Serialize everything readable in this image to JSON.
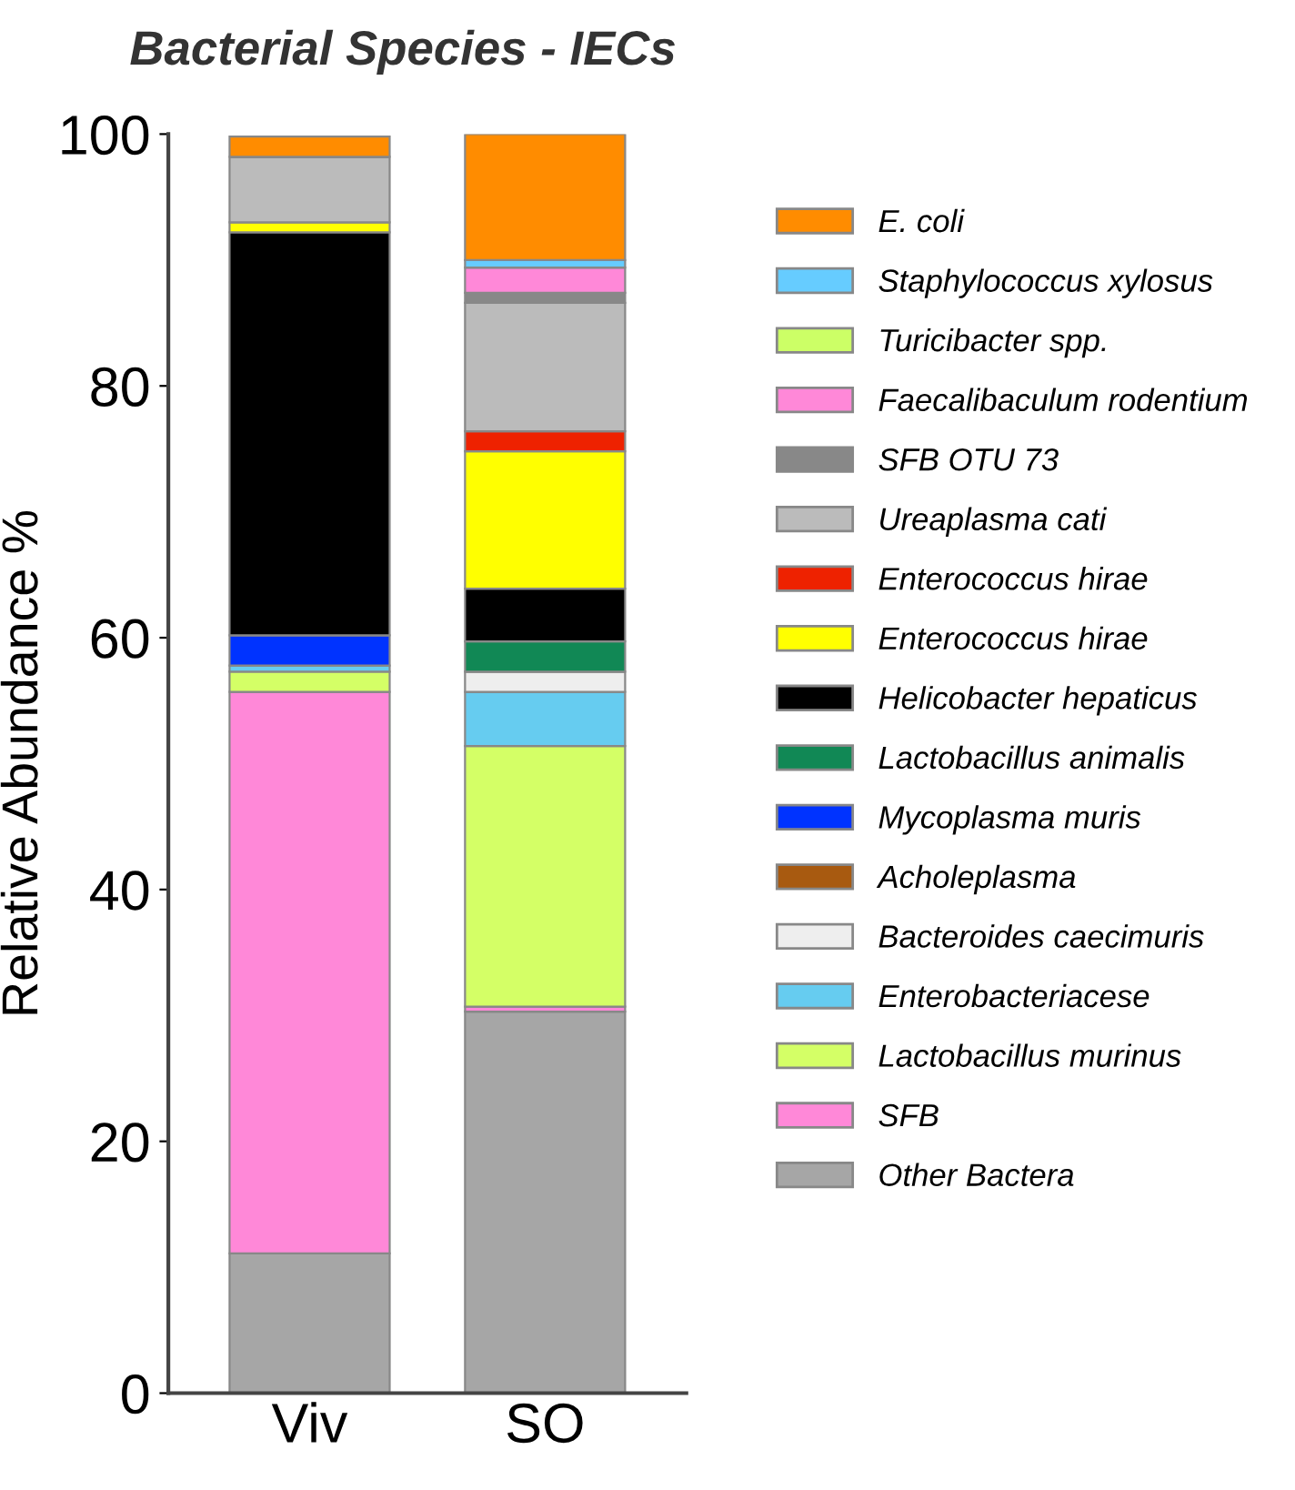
{
  "chart_data": {
    "type": "bar",
    "stacked": true,
    "title": "Bacterial Species - IECs",
    "ylabel": "Relative Abundance %",
    "categories": [
      "Viv",
      "SO"
    ],
    "ylim": [
      0,
      100
    ],
    "yticks": [
      0,
      20,
      40,
      60,
      80,
      100
    ],
    "grid": false,
    "legend": "right",
    "series": [
      {
        "name": "Other Bactera",
        "color": "#a6a6a6",
        "values": [
          11.1,
          30.3
        ]
      },
      {
        "name": "SFB",
        "color": "#ff88d8",
        "values": [
          44.6,
          0.4
        ]
      },
      {
        "name": "Lactobacillus murinus",
        "color": "#d4ff66",
        "values": [
          1.6,
          20.7
        ]
      },
      {
        "name": "Enterobacteriacese",
        "color": "#66ccf0",
        "values": [
          0.5,
          4.3
        ]
      },
      {
        "name": "Bacteroides caecimuris",
        "color": "#eeeeee",
        "values": [
          0,
          1.6
        ]
      },
      {
        "name": "Acholeplasma",
        "color": "#a85a10",
        "values": [
          0,
          0
        ]
      },
      {
        "name": "Mycoplasma muris",
        "color": "#0033ff",
        "values": [
          2.4,
          0
        ]
      },
      {
        "name": "Lactobacillus animalis",
        "color": "#118855",
        "values": [
          0,
          2.4
        ]
      },
      {
        "name": "Helicobacter hepaticus",
        "color": "#000000",
        "values": [
          32.0,
          4.2
        ]
      },
      {
        "name": "Enterococcus hirae",
        "color": "#ffff00",
        "values": [
          0.8,
          10.9
        ]
      },
      {
        "name": "Enterococcus hirae",
        "color": "#ee2200",
        "values": [
          null,
          1.6
        ]
      },
      {
        "name": "Ureaplasma cati",
        "color": "#bbbbbb",
        "values": [
          5.2,
          10.2
        ]
      },
      {
        "name": "SFB OTU 73",
        "color": "#888888",
        "values": [
          0,
          0.8
        ]
      },
      {
        "name": "Faecalibaculum rodentium",
        "color": "#ff88d8",
        "values": [
          0,
          2.0
        ]
      },
      {
        "name": "Turicibacter spp.",
        "color": "#ccff66",
        "values": [
          0,
          0
        ]
      },
      {
        "name": "Staphylococcus xylosus",
        "color": "#66ccff",
        "values": [
          0,
          0.6
        ]
      },
      {
        "name": "E. coli",
        "color": "#ff8c00",
        "values": [
          1.6,
          10.0
        ]
      }
    ]
  }
}
